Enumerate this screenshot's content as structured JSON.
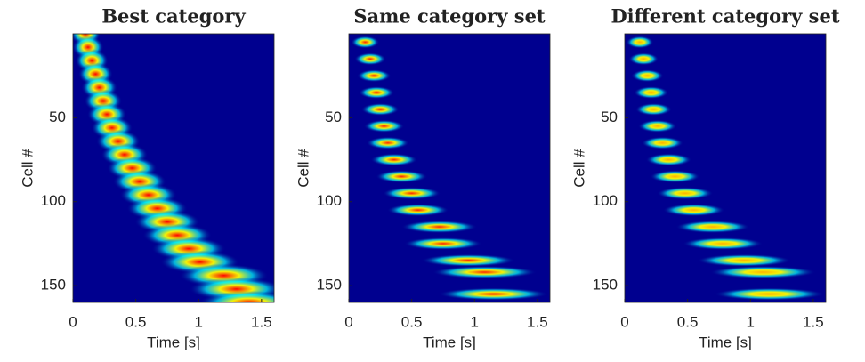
{
  "chart_data": [
    {
      "type": "heatmap",
      "title": "Best category",
      "xlabel": "Time [s]",
      "ylabel": "Cell #",
      "xlim": [
        0,
        1.6
      ],
      "xticks": [
        0,
        0.5,
        1,
        1.5
      ],
      "ylim": [
        0,
        160
      ],
      "yticks": [
        50,
        100,
        150
      ],
      "peak_color": "#ff0000",
      "cells": [
        0,
        8,
        16,
        24,
        32,
        40,
        48,
        56,
        64,
        72,
        80,
        88,
        96,
        104,
        112,
        120,
        128,
        136,
        144,
        152,
        160
      ],
      "times": [
        0.1,
        0.12,
        0.15,
        0.18,
        0.21,
        0.24,
        0.27,
        0.31,
        0.36,
        0.41,
        0.47,
        0.53,
        0.6,
        0.67,
        0.75,
        0.83,
        0.92,
        1.01,
        1.2,
        1.3,
        1.4
      ]
    },
    {
      "type": "heatmap",
      "title": "Same category set",
      "xlabel": "Time [s]",
      "ylabel": "Cell #",
      "xlim": [
        0,
        1.6
      ],
      "xticks": [
        0,
        0.5,
        1,
        1.5
      ],
      "ylim": [
        0,
        160
      ],
      "yticks": [
        50,
        100,
        150
      ],
      "peak_color": "#ff2000",
      "cells": [
        5,
        15,
        25,
        35,
        45,
        55,
        65,
        75,
        85,
        95,
        105,
        115,
        125,
        135,
        142,
        155
      ],
      "times": [
        0.13,
        0.17,
        0.2,
        0.22,
        0.25,
        0.28,
        0.31,
        0.36,
        0.42,
        0.5,
        0.55,
        0.72,
        0.75,
        0.95,
        1.08,
        1.15
      ]
    },
    {
      "type": "heatmap",
      "title": "Different category set",
      "xlabel": "Time [s]",
      "ylabel": "Cell #",
      "xlim": [
        0,
        1.6
      ],
      "xticks": [
        0,
        0.5,
        1,
        1.5
      ],
      "ylim": [
        0,
        160
      ],
      "yticks": [
        50,
        100,
        150
      ],
      "peak_color": "#ffb000",
      "cells": [
        5,
        15,
        25,
        35,
        45,
        55,
        65,
        75,
        85,
        95,
        105,
        115,
        125,
        135,
        142,
        155
      ],
      "times": [
        0.12,
        0.15,
        0.18,
        0.21,
        0.23,
        0.26,
        0.3,
        0.35,
        0.4,
        0.48,
        0.55,
        0.7,
        0.78,
        0.95,
        1.1,
        1.15
      ]
    }
  ]
}
